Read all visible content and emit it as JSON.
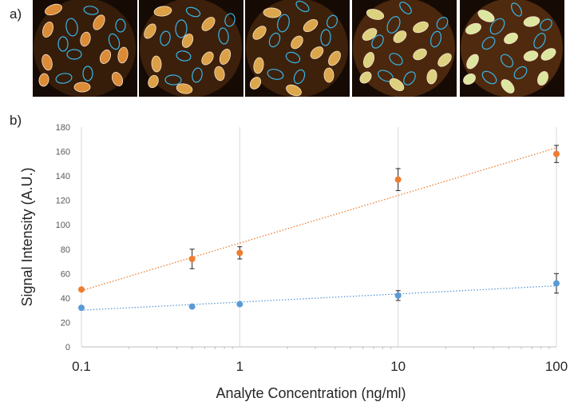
{
  "panels": {
    "a": "a)",
    "b": "b)"
  },
  "images": [
    {
      "brightness": 0.35
    },
    {
      "brightness": 0.5
    },
    {
      "brightness": 0.55
    },
    {
      "brightness": 0.85
    },
    {
      "brightness": 1.0
    }
  ],
  "chart_data": {
    "type": "scatter",
    "xscale": "log",
    "xlim": [
      0.1,
      100
    ],
    "ylim": [
      0,
      180
    ],
    "xticks": [
      "0.1",
      "1",
      "10",
      "100"
    ],
    "yticks": [
      "0",
      "20",
      "40",
      "60",
      "80",
      "100",
      "120",
      "140",
      "160",
      "180"
    ],
    "xlabel": "Analyte Concentration (ng/ml)",
    "ylabel": "Signal Intensity (A.U.)",
    "grid": "vertical",
    "series": [
      {
        "color": "#ed7d31",
        "points": [
          {
            "x": 0.1,
            "y": 47,
            "err": 0
          },
          {
            "x": 0.5,
            "y": 72,
            "err": 8
          },
          {
            "x": 1,
            "y": 77,
            "err": 5
          },
          {
            "x": 10,
            "y": 137,
            "err": 9
          },
          {
            "x": 100,
            "y": 158,
            "err": 7
          }
        ],
        "trend": [
          [
            0.1,
            46
          ],
          [
            100,
            163
          ]
        ]
      },
      {
        "color": "#5b9bd5",
        "points": [
          {
            "x": 0.1,
            "y": 32,
            "err": 0
          },
          {
            "x": 0.5,
            "y": 33,
            "err": 0
          },
          {
            "x": 1,
            "y": 35,
            "err": 0
          },
          {
            "x": 10,
            "y": 42,
            "err": 4
          },
          {
            "x": 100,
            "y": 52,
            "err": 8
          }
        ],
        "trend": [
          [
            0.1,
            30
          ],
          [
            100,
            50
          ]
        ]
      }
    ]
  }
}
